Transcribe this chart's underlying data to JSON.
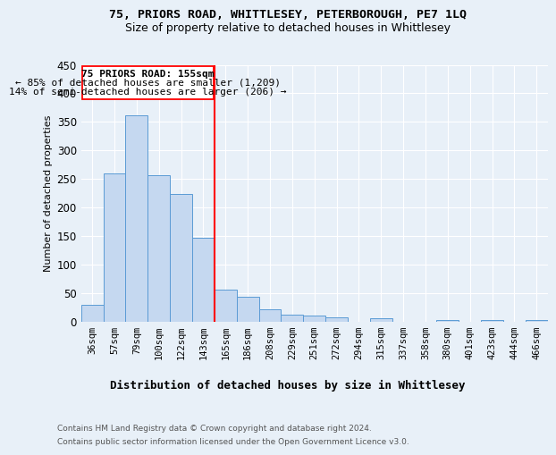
{
  "title1": "75, PRIORS ROAD, WHITTLESEY, PETERBOROUGH, PE7 1LQ",
  "title2": "Size of property relative to detached houses in Whittlesey",
  "xlabel": "Distribution of detached houses by size in Whittlesey",
  "ylabel": "Number of detached properties",
  "categories": [
    "36sqm",
    "57sqm",
    "79sqm",
    "100sqm",
    "122sqm",
    "143sqm",
    "165sqm",
    "186sqm",
    "208sqm",
    "229sqm",
    "251sqm",
    "272sqm",
    "294sqm",
    "315sqm",
    "337sqm",
    "358sqm",
    "380sqm",
    "401sqm",
    "423sqm",
    "444sqm",
    "466sqm"
  ],
  "values": [
    30,
    260,
    362,
    257,
    224,
    147,
    56,
    44,
    22,
    12,
    11,
    8,
    0,
    6,
    0,
    0,
    3,
    0,
    3,
    0,
    3
  ],
  "bar_color": "#c5d8f0",
  "bar_edge_color": "#5b9bd5",
  "ref_line_color": "red",
  "annotation_line1": "75 PRIORS ROAD: 155sqm",
  "annotation_line2": "← 85% of detached houses are smaller (1,209)",
  "annotation_line3": "14% of semi-detached houses are larger (206) →",
  "ylim": [
    0,
    450
  ],
  "yticks": [
    0,
    50,
    100,
    150,
    200,
    250,
    300,
    350,
    400,
    450
  ],
  "footnote1": "Contains HM Land Registry data © Crown copyright and database right 2024.",
  "footnote2": "Contains public sector information licensed under the Open Government Licence v3.0.",
  "bg_color": "#e8f0f8",
  "plot_bg_color": "#e8f0f8",
  "title1_fontsize": 9.5,
  "title2_fontsize": 9,
  "xlabel_fontsize": 9,
  "ylabel_fontsize": 8,
  "tick_fontsize": 7.5,
  "annotation_fontsize": 8,
  "footnote_fontsize": 6.5
}
